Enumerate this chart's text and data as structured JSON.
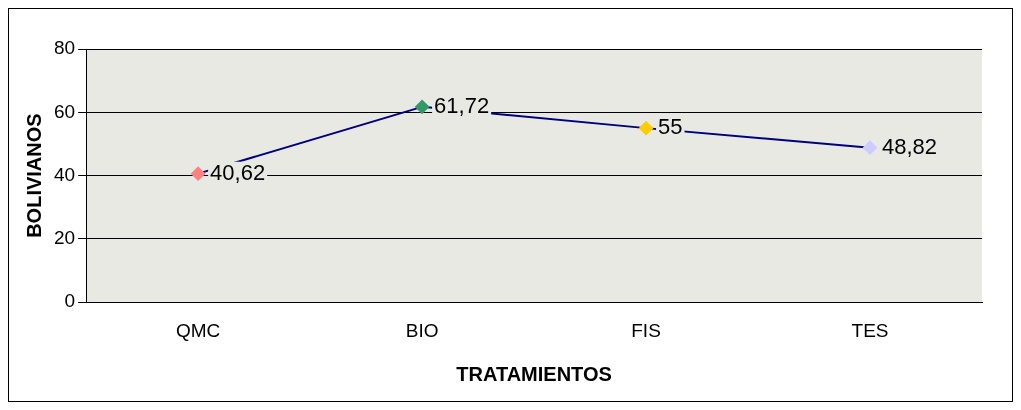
{
  "chart_data": {
    "type": "line",
    "xlabel": "TRATAMIENTOS",
    "ylabel": "BOLIVIANOS",
    "categories": [
      "QMC",
      "BIO",
      "FIS",
      "TES"
    ],
    "series": [
      {
        "color": "#000080",
        "colors": [
          "#ff8080",
          "#339966",
          "#ffcc00",
          "#ccccff"
        ],
        "values": [
          40.62,
          61.72,
          55,
          48.82
        ],
        "value_labels": [
          "40,62",
          "61,72",
          "55",
          "48,82"
        ]
      }
    ],
    "ylim": [
      0,
      80
    ],
    "yticks": [
      0,
      20,
      40,
      60,
      80
    ],
    "grid": "y",
    "legend": false,
    "marker": "diamond",
    "line_style": "solid"
  }
}
